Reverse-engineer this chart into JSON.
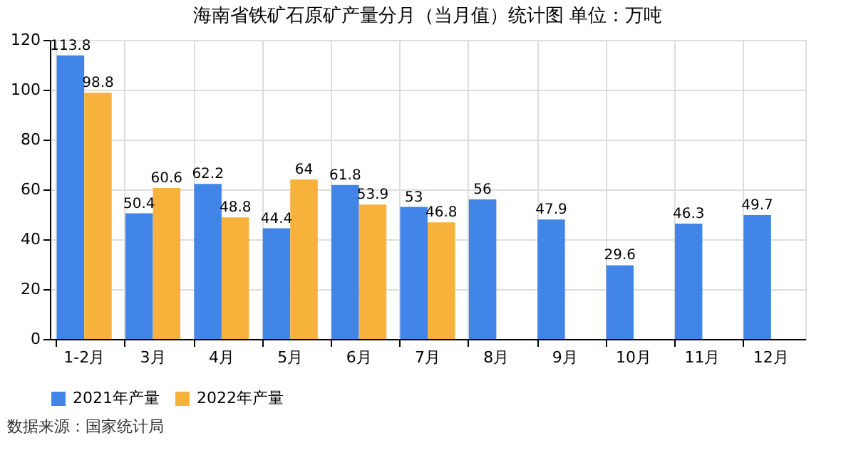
{
  "chart_data": {
    "type": "bar",
    "title": "海南省铁矿石原矿产量分月（当月值）统计图 单位：万吨",
    "categories": [
      "1-2月",
      "3月",
      "4月",
      "5月",
      "6月",
      "7月",
      "8月",
      "9月",
      "10月",
      "11月",
      "12月"
    ],
    "series": [
      {
        "name": "2021年产量",
        "color": "#4285e8",
        "values": [
          113.8,
          50.4,
          62.2,
          44.4,
          61.8,
          53,
          56,
          47.9,
          29.6,
          46.3,
          49.7
        ]
      },
      {
        "name": "2022年产量",
        "color": "#f7b23b",
        "values": [
          98.8,
          60.6,
          48.8,
          64,
          53.9,
          46.8,
          null,
          null,
          null,
          null,
          null
        ]
      }
    ],
    "ylim": [
      0,
      120
    ],
    "yticks": [
      0,
      20,
      40,
      60,
      80,
      100,
      120
    ],
    "grid": true,
    "legend": "bottom",
    "data_labels": true,
    "annotations": [
      "数据来源：国家统计局"
    ]
  }
}
